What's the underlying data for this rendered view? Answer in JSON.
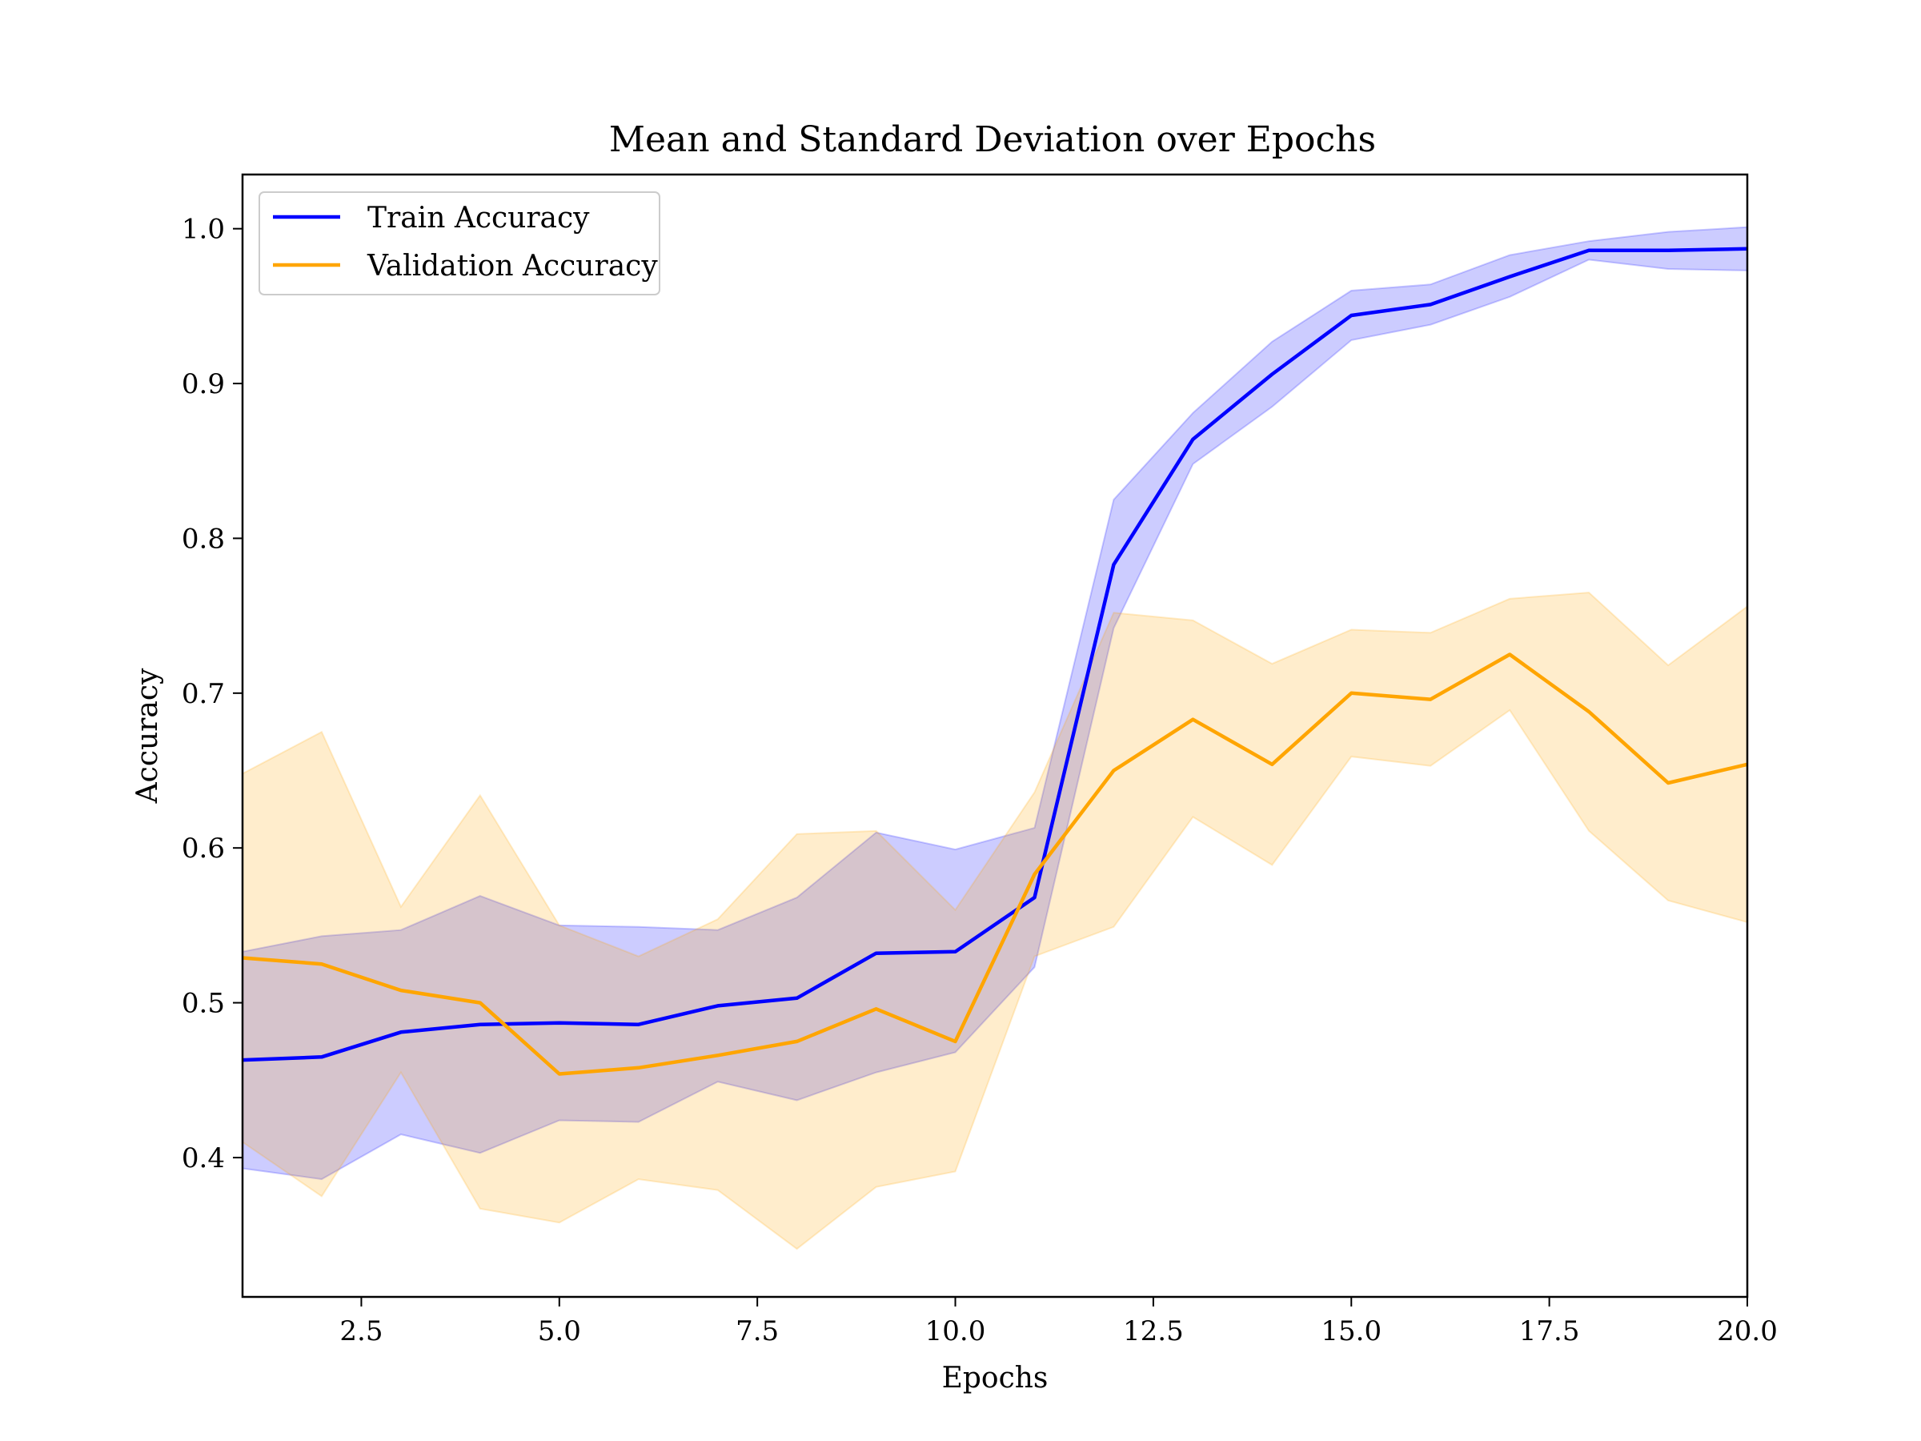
{
  "chart_data": {
    "type": "line",
    "title": "Mean and Standard Deviation over Epochs",
    "xlabel": "Epochs",
    "ylabel": "Accuracy",
    "xlim": [
      1,
      20
    ],
    "ylim": [
      0.31,
      1.035
    ],
    "x_ticks": [
      2.5,
      5.0,
      7.5,
      10.0,
      12.5,
      15.0,
      17.5,
      20.0
    ],
    "x_tick_labels": [
      "2.5",
      "5.0",
      "7.5",
      "10.0",
      "12.5",
      "15.0",
      "17.5",
      "20.0"
    ],
    "y_ticks": [
      0.4,
      0.5,
      0.6,
      0.7,
      0.8,
      0.9,
      1.0
    ],
    "y_tick_labels": [
      "0.4",
      "0.5",
      "0.6",
      "0.7",
      "0.8",
      "0.9",
      "1.0"
    ],
    "grid": false,
    "legend_position": "top-left",
    "x": [
      1,
      2,
      3,
      4,
      5,
      6,
      7,
      8,
      9,
      10,
      11,
      12,
      13,
      14,
      15,
      16,
      17,
      18,
      19,
      20
    ],
    "series": [
      {
        "name": "Train Accuracy",
        "color": "#0000ff",
        "band_color": "#0000ff",
        "mean": [
          0.463,
          0.465,
          0.481,
          0.486,
          0.487,
          0.486,
          0.498,
          0.503,
          0.532,
          0.533,
          0.568,
          0.783,
          0.864,
          0.906,
          0.944,
          0.951,
          0.969,
          0.986,
          0.986,
          0.987
        ],
        "lower": [
          0.393,
          0.386,
          0.415,
          0.403,
          0.424,
          0.423,
          0.449,
          0.437,
          0.455,
          0.468,
          0.523,
          0.742,
          0.848,
          0.885,
          0.928,
          0.938,
          0.956,
          0.98,
          0.974,
          0.973
        ],
        "upper": [
          0.533,
          0.543,
          0.547,
          0.569,
          0.55,
          0.549,
          0.547,
          0.568,
          0.61,
          0.599,
          0.613,
          0.825,
          0.881,
          0.927,
          0.96,
          0.964,
          0.983,
          0.992,
          0.998,
          1.001
        ]
      },
      {
        "name": "Validation Accuracy",
        "color": "#ffa500",
        "band_color": "#ffa500",
        "mean": [
          0.529,
          0.525,
          0.508,
          0.5,
          0.454,
          0.458,
          0.466,
          0.475,
          0.496,
          0.475,
          0.583,
          0.65,
          0.683,
          0.654,
          0.7,
          0.696,
          0.725,
          0.688,
          0.642,
          0.654
        ],
        "lower": [
          0.41,
          0.375,
          0.455,
          0.367,
          0.358,
          0.386,
          0.379,
          0.341,
          0.381,
          0.391,
          0.53,
          0.549,
          0.62,
          0.589,
          0.659,
          0.653,
          0.689,
          0.611,
          0.566,
          0.552
        ],
        "upper": [
          0.648,
          0.675,
          0.562,
          0.634,
          0.55,
          0.53,
          0.554,
          0.609,
          0.611,
          0.56,
          0.636,
          0.752,
          0.747,
          0.719,
          0.741,
          0.739,
          0.761,
          0.765,
          0.718,
          0.756
        ]
      }
    ]
  }
}
